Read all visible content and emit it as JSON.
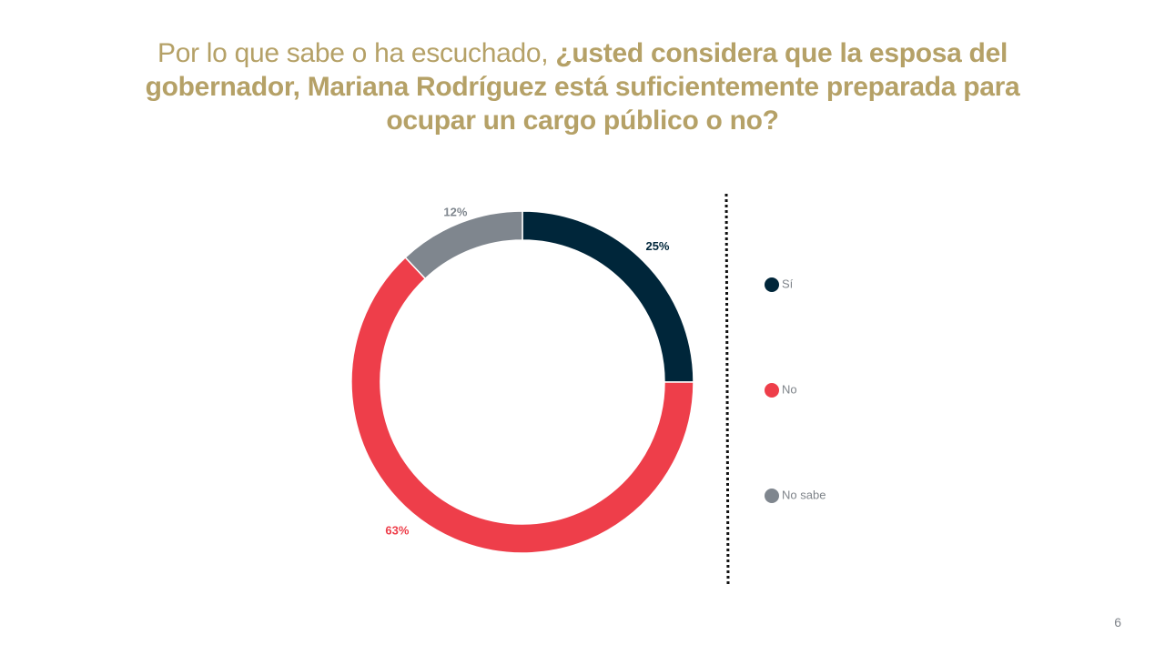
{
  "title": {
    "lead": "Por lo que sabe o ha escuchado, ",
    "question": "¿usted considera que la esposa del gobernador, Mariana Rodríguez está suficientemente preparada para ocupar un cargo público o no?"
  },
  "chart_data": {
    "type": "pie",
    "donut": true,
    "categories": [
      "Sí",
      "No",
      "No sabe"
    ],
    "values": [
      25,
      63,
      12
    ],
    "labels": [
      "25%",
      "63%",
      "12%"
    ],
    "colors": [
      "#00263a",
      "#ee3e4a",
      "#7f868e"
    ],
    "legend_position": "right",
    "title": "",
    "xlabel": "",
    "ylabel": ""
  },
  "legend": {
    "items": [
      {
        "label": "Sí",
        "color": "#00263a"
      },
      {
        "label": "No",
        "color": "#ee3e4a"
      },
      {
        "label": "No sabe",
        "color": "#7f868e"
      }
    ]
  },
  "page_number": "6"
}
